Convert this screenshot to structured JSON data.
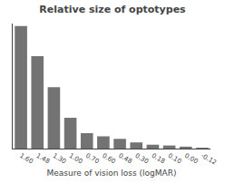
{
  "chart_data": {
    "type": "bar",
    "title": "Relative size of optotypes",
    "xlabel": "Measure of vision loss (logMAR)",
    "categories": [
      "1.60",
      "1.48",
      "1.30",
      "1.00",
      "0.70",
      "0.60",
      "0.48",
      "0.30",
      "0.18",
      "0.10",
      "0.00",
      "-0.12"
    ],
    "values": [
      39.8,
      30.0,
      19.95,
      10.0,
      5.01,
      3.98,
      3.16,
      2.0,
      1.26,
      1.0,
      0.63,
      0.25
    ],
    "color": "#737373",
    "ylim": [
      0,
      40.596
    ],
    "grid": false,
    "tick_labels": "x"
  }
}
